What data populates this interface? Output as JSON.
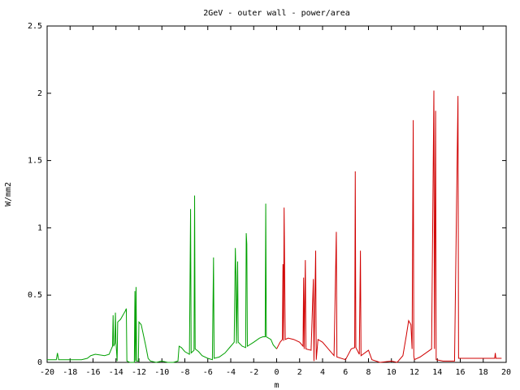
{
  "chart_data": {
    "type": "line",
    "title": "2GeV - outer wall - power/area",
    "xlabel": "m",
    "ylabel": "W/mm2",
    "xlim": [
      -20,
      20
    ],
    "ylim": [
      0,
      2.5
    ],
    "x_ticks": [
      -20,
      -18,
      -16,
      -14,
      -12,
      -10,
      -8,
      -6,
      -4,
      -2,
      0,
      2,
      4,
      6,
      8,
      10,
      12,
      14,
      16,
      18,
      20
    ],
    "y_ticks": [
      0,
      0.5,
      1,
      1.5,
      2,
      2.5
    ],
    "grid": false,
    "legend": "none",
    "series": [
      {
        "color": "#00a000",
        "points": [
          [
            -20,
            0.02
          ],
          [
            -19.2,
            0.02
          ],
          [
            -19.1,
            0.07
          ],
          [
            -19.0,
            0.02
          ],
          [
            -18.0,
            0.02
          ],
          [
            -17.0,
            0.02
          ],
          [
            -16.5,
            0.03
          ],
          [
            -16.2,
            0.05
          ],
          [
            -15.8,
            0.06
          ],
          [
            -15.0,
            0.05
          ],
          [
            -14.6,
            0.06
          ],
          [
            -14.4,
            0.1
          ],
          [
            -14.3,
            0.12
          ],
          [
            -14.25,
            0.35
          ],
          [
            -14.2,
            0.12
          ],
          [
            -14.1,
            0.14
          ],
          [
            -14.05,
            0.37
          ],
          [
            -14.0,
            0.15
          ],
          [
            -13.9,
            0.01
          ],
          [
            -13.85,
            0.3
          ],
          [
            -13.6,
            0.32
          ],
          [
            -13.4,
            0.35
          ],
          [
            -13.2,
            0.38
          ],
          [
            -13.1,
            0.4
          ],
          [
            -13.05,
            0.01
          ],
          [
            -12.8,
            0.0
          ],
          [
            -12.4,
            0.0
          ],
          [
            -12.35,
            0.53
          ],
          [
            -12.3,
            0.01
          ],
          [
            -12.25,
            0.56
          ],
          [
            -12.2,
            0.01
          ],
          [
            -12.05,
            0.01
          ],
          [
            -12.0,
            0.3
          ],
          [
            -11.8,
            0.28
          ],
          [
            -11.6,
            0.2
          ],
          [
            -11.4,
            0.12
          ],
          [
            -11.2,
            0.03
          ],
          [
            -11.0,
            0.01
          ],
          [
            -10.5,
            0.0
          ],
          [
            -10.0,
            0.01
          ],
          [
            -9.5,
            0.0
          ],
          [
            -9.0,
            0.0
          ],
          [
            -8.6,
            0.01
          ],
          [
            -8.5,
            0.12
          ],
          [
            -8.3,
            0.11
          ],
          [
            -8.0,
            0.08
          ],
          [
            -7.6,
            0.06
          ],
          [
            -7.5,
            1.14
          ],
          [
            -7.45,
            0.07
          ],
          [
            -7.2,
            0.09
          ],
          [
            -7.15,
            1.24
          ],
          [
            -7.1,
            0.1
          ],
          [
            -6.8,
            0.08
          ],
          [
            -6.5,
            0.05
          ],
          [
            -6.0,
            0.03
          ],
          [
            -5.6,
            0.02
          ],
          [
            -5.5,
            0.78
          ],
          [
            -5.45,
            0.03
          ],
          [
            -5.0,
            0.04
          ],
          [
            -4.5,
            0.07
          ],
          [
            -4.0,
            0.12
          ],
          [
            -3.7,
            0.15
          ],
          [
            -3.6,
            0.85
          ],
          [
            -3.55,
            0.65
          ],
          [
            -3.5,
            0.14
          ],
          [
            -3.4,
            0.75
          ],
          [
            -3.35,
            0.15
          ],
          [
            -3.0,
            0.12
          ],
          [
            -2.7,
            0.11
          ],
          [
            -2.65,
            0.96
          ],
          [
            -2.6,
            0.88
          ],
          [
            -2.55,
            0.12
          ],
          [
            -2.0,
            0.15
          ],
          [
            -1.5,
            0.18
          ],
          [
            -1.2,
            0.19
          ],
          [
            -1.0,
            0.19
          ],
          [
            -0.95,
            1.18
          ],
          [
            -0.9,
            0.19
          ],
          [
            -0.5,
            0.17
          ],
          [
            -0.3,
            0.13
          ],
          [
            0,
            0.1
          ]
        ]
      },
      {
        "color": "#d00000",
        "points": [
          [
            0,
            0.1
          ],
          [
            0.3,
            0.15
          ],
          [
            0.5,
            0.17
          ],
          [
            0.55,
            0.73
          ],
          [
            0.6,
            0.16
          ],
          [
            0.65,
            1.15
          ],
          [
            0.7,
            0.64
          ],
          [
            0.75,
            0.17
          ],
          [
            1.0,
            0.18
          ],
          [
            1.5,
            0.17
          ],
          [
            2.0,
            0.15
          ],
          [
            2.3,
            0.12
          ],
          [
            2.35,
            0.63
          ],
          [
            2.4,
            0.1
          ],
          [
            2.5,
            0.76
          ],
          [
            2.55,
            0.1
          ],
          [
            3.0,
            0.09
          ],
          [
            3.2,
            0.62
          ],
          [
            3.25,
            0.01
          ],
          [
            3.4,
            0.83
          ],
          [
            3.45,
            0.02
          ],
          [
            3.6,
            0.17
          ],
          [
            4.0,
            0.15
          ],
          [
            4.5,
            0.1
          ],
          [
            5.0,
            0.05
          ],
          [
            5.2,
            0.97
          ],
          [
            5.25,
            0.04
          ],
          [
            6.0,
            0.02
          ],
          [
            6.5,
            0.1
          ],
          [
            6.8,
            0.11
          ],
          [
            6.85,
            1.42
          ],
          [
            6.9,
            0.11
          ],
          [
            7.2,
            0.06
          ],
          [
            7.3,
            0.83
          ],
          [
            7.35,
            0.05
          ],
          [
            8.0,
            0.09
          ],
          [
            8.3,
            0.02
          ],
          [
            9.0,
            0.0
          ],
          [
            10.0,
            0.01
          ],
          [
            10.5,
            0.0
          ],
          [
            11.0,
            0.05
          ],
          [
            11.3,
            0.2
          ],
          [
            11.5,
            0.31
          ],
          [
            11.7,
            0.28
          ],
          [
            11.8,
            0.1
          ],
          [
            11.9,
            1.8
          ],
          [
            11.95,
            0.05
          ],
          [
            12.0,
            0.02
          ],
          [
            12.5,
            0.04
          ],
          [
            13.0,
            0.07
          ],
          [
            13.5,
            0.1
          ],
          [
            13.7,
            2.02
          ],
          [
            13.75,
            0.1
          ],
          [
            13.85,
            1.87
          ],
          [
            13.9,
            0.02
          ],
          [
            14.5,
            0.01
          ],
          [
            15.5,
            0.01
          ],
          [
            15.8,
            1.98
          ],
          [
            15.85,
            0.03
          ],
          [
            16.5,
            0.03
          ],
          [
            17.0,
            0.03
          ],
          [
            18.0,
            0.03
          ],
          [
            19.0,
            0.03
          ],
          [
            19.05,
            0.07
          ],
          [
            19.1,
            0.03
          ],
          [
            19.6,
            0.03
          ]
        ]
      }
    ]
  }
}
